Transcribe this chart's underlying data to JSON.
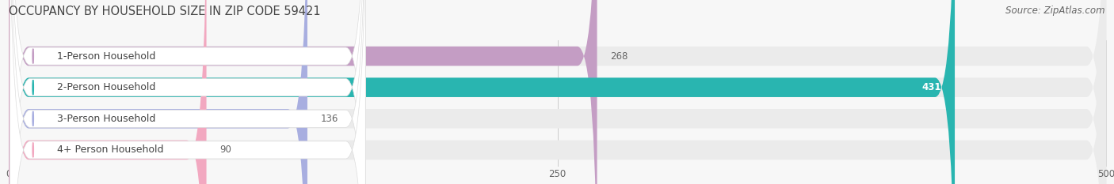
{
  "title": "OCCUPANCY BY HOUSEHOLD SIZE IN ZIP CODE 59421",
  "source": "Source: ZipAtlas.com",
  "categories": [
    "1-Person Household",
    "2-Person Household",
    "3-Person Household",
    "4+ Person Household"
  ],
  "values": [
    268,
    431,
    136,
    90
  ],
  "bar_colors": [
    "#c49dc4",
    "#29b5b0",
    "#a8aee0",
    "#f2a8c0"
  ],
  "bar_bg_color": "#ebebeb",
  "xlim": [
    0,
    500
  ],
  "xticks": [
    0,
    250,
    500
  ],
  "title_fontsize": 10.5,
  "source_fontsize": 8.5,
  "label_fontsize": 9,
  "value_fontsize": 8.5,
  "background_color": "#f7f7f7",
  "bar_height": 0.62,
  "bar_gap": 0.38
}
